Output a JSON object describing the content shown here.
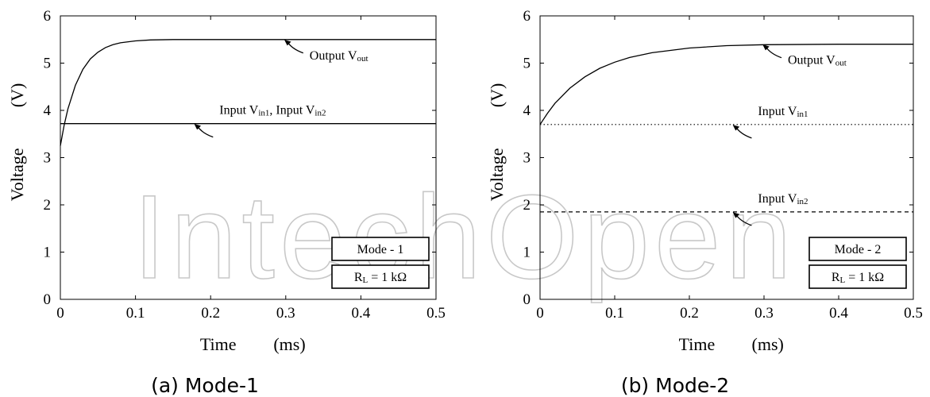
{
  "watermark": {
    "text": "IntechOpen",
    "color": "#c8c8c8"
  },
  "chart_data": [
    {
      "type": "line",
      "caption": "(a) Mode-1",
      "xlabel": "Time",
      "xunit": "(ms)",
      "ylabel": "Voltage",
      "yunit": "(V)",
      "xlim": [
        0,
        0.5
      ],
      "ylim": [
        0,
        6
      ],
      "xticks": [
        "0",
        "0.1",
        "0.2",
        "0.3",
        "0.4",
        "0.5"
      ],
      "yticks": [
        "0",
        "1",
        "2",
        "3",
        "4",
        "5",
        "6"
      ],
      "grid": false,
      "series": [
        {
          "style": "solid",
          "color": "#000000",
          "x": [
            0.0,
            0.005,
            0.01,
            0.02,
            0.03,
            0.04,
            0.05,
            0.06,
            0.07,
            0.08,
            0.1,
            0.12,
            0.15,
            0.2,
            0.3,
            0.4,
            0.5
          ],
          "y": [
            3.25,
            3.68,
            4.03,
            4.53,
            4.87,
            5.09,
            5.23,
            5.33,
            5.39,
            5.43,
            5.47,
            5.49,
            5.5,
            5.5,
            5.5,
            5.5,
            5.5
          ]
        },
        {
          "style": "solid",
          "color": "#000000",
          "x": [
            0.0,
            0.5
          ],
          "y": [
            3.72,
            3.72
          ]
        }
      ],
      "annotations": [
        {
          "main": "Output V",
          "sub": "out",
          "tail": "",
          "at": [
            0.3,
            5.5
          ]
        },
        {
          "main": "Input V",
          "sub": "in1",
          "tail": ", Input V",
          "sub2": "in2",
          "at": [
            0.18,
            3.72
          ]
        }
      ],
      "legend_boxes": [
        {
          "main": "Mode - 1",
          "sub": "",
          "tail": ""
        },
        {
          "main": "R",
          "sub": "L",
          "tail": " = 1 kΩ"
        }
      ]
    },
    {
      "type": "line",
      "caption": "(b) Mode-2",
      "xlabel": "Time",
      "xunit": "(ms)",
      "ylabel": "Voltage",
      "yunit": "(V)",
      "xlim": [
        0,
        0.5
      ],
      "ylim": [
        0,
        6
      ],
      "xticks": [
        "0",
        "0.1",
        "0.2",
        "0.3",
        "0.4",
        "0.5"
      ],
      "yticks": [
        "0",
        "1",
        "2",
        "3",
        "4",
        "5",
        "6"
      ],
      "grid": false,
      "series": [
        {
          "style": "solid",
          "color": "#000000",
          "x": [
            0.0,
            0.01,
            0.02,
            0.04,
            0.06,
            0.08,
            0.1,
            0.12,
            0.15,
            0.2,
            0.25,
            0.3,
            0.4,
            0.5
          ],
          "y": [
            3.7,
            3.94,
            4.15,
            4.47,
            4.71,
            4.89,
            5.02,
            5.12,
            5.22,
            5.32,
            5.37,
            5.39,
            5.4,
            5.4
          ]
        },
        {
          "style": "dotted",
          "color": "#000000",
          "x": [
            0.0,
            0.5
          ],
          "y": [
            3.7,
            3.7
          ]
        },
        {
          "style": "dashed",
          "color": "#000000",
          "x": [
            0.0,
            0.5
          ],
          "y": [
            1.85,
            1.85
          ]
        }
      ],
      "annotations": [
        {
          "main": "Output V",
          "sub": "out",
          "tail": "",
          "at": [
            0.3,
            5.4
          ]
        },
        {
          "main": "Input V",
          "sub": "in1",
          "tail": "",
          "at": [
            0.26,
            3.7
          ]
        },
        {
          "main": "Input V",
          "sub": "in2",
          "tail": "",
          "at": [
            0.26,
            1.85
          ]
        }
      ],
      "legend_boxes": [
        {
          "main": "Mode - 2",
          "sub": "",
          "tail": ""
        },
        {
          "main": "R",
          "sub": "L",
          "tail": " = 1 kΩ"
        }
      ]
    }
  ]
}
